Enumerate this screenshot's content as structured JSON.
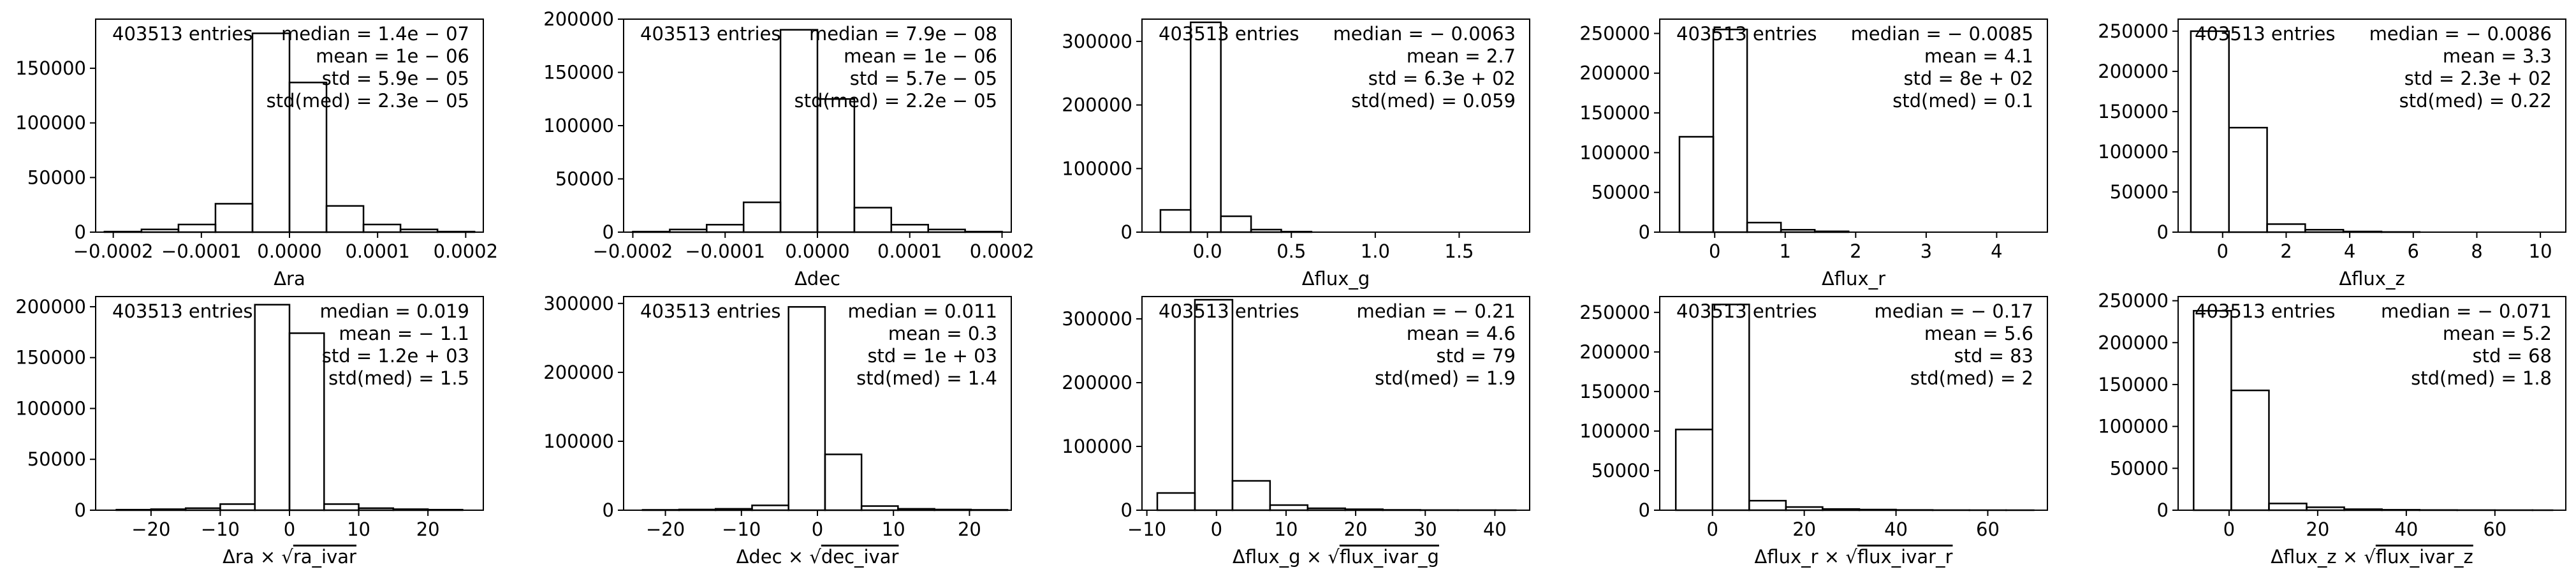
{
  "chart_data": [
    {
      "type": "bar",
      "entries_label": "403513 entries",
      "xlabel": "Δra",
      "stats": [
        "median = 1.4e − 07",
        "mean = 1e − 06",
        "std = 5.9e − 05",
        "std(med) = 2.3e − 05"
      ],
      "xlim": [
        -0.00022,
        0.00022
      ],
      "ylim": [
        0,
        195000
      ],
      "xticks": [
        -0.0002,
        -0.0001,
        0.0,
        0.0001,
        0.0002
      ],
      "xtick_labels": [
        "−0.0002",
        "−0.0001",
        "0.0000",
        "0.0001",
        "0.0002"
      ],
      "yticks": [
        0,
        50000,
        100000,
        150000
      ],
      "ytick_labels": [
        "0",
        "50000",
        "100000",
        "150000"
      ],
      "bins": [
        -0.00021,
        -0.000168,
        -0.000126,
        -8.4e-05,
        -4.2e-05,
        0.0,
        4.2e-05,
        8.4e-05,
        0.000126,
        0.000168,
        0.00021
      ],
      "counts": [
        500,
        2500,
        7000,
        26000,
        182000,
        137000,
        24000,
        7000,
        2500,
        500
      ]
    },
    {
      "type": "bar",
      "entries_label": "403513 entries",
      "xlabel": "Δdec",
      "stats": [
        "median = 7.9e − 08",
        "mean = 1e − 06",
        "std = 5.7e − 05",
        "std(med) = 2.2e − 05"
      ],
      "xlim": [
        -0.00021,
        0.00021
      ],
      "ylim": [
        0,
        200000
      ],
      "xticks": [
        -0.0002,
        -0.0001,
        0.0,
        0.0001,
        0.0002
      ],
      "xtick_labels": [
        "−0.0002",
        "−0.0001",
        "0.0000",
        "0.0001",
        "0.0002"
      ],
      "yticks": [
        0,
        50000,
        100000,
        150000,
        200000
      ],
      "ytick_labels": [
        "0",
        "50000",
        "100000",
        "150000",
        "200000"
      ],
      "bins": [
        -0.0002,
        -0.00016,
        -0.00012,
        -8e-05,
        -4e-05,
        0.0,
        4e-05,
        8e-05,
        0.00012,
        0.00016,
        0.0002
      ],
      "counts": [
        500,
        2500,
        7000,
        28000,
        190000,
        125000,
        23000,
        7000,
        2500,
        500
      ]
    },
    {
      "type": "bar",
      "entries_label": "403513 entries",
      "xlabel": "Δflux_g",
      "stats": [
        "median = − 0.0063",
        "mean = 2.7",
        "std = 6.3e + 02",
        "std(med) = 0.059"
      ],
      "xlim": [
        -0.39,
        1.92
      ],
      "ylim": [
        0,
        335000
      ],
      "xticks": [
        0.0,
        0.5,
        1.0,
        1.5
      ],
      "xtick_labels": [
        "0.0",
        "0.5",
        "1.0",
        "1.5"
      ],
      "yticks": [
        0,
        100000,
        200000,
        300000
      ],
      "ytick_labels": [
        "0",
        "100000",
        "200000",
        "300000"
      ],
      "bins": [
        -0.28,
        -0.1,
        0.08,
        0.26,
        0.44,
        0.62,
        0.8,
        0.98,
        1.16,
        1.34,
        1.52,
        1.7
      ],
      "counts": [
        35000,
        330000,
        25000,
        4000,
        800,
        0,
        0,
        0,
        0,
        0,
        0
      ]
    },
    {
      "type": "bar",
      "entries_label": "403513 entries",
      "xlabel": "Δflux_r",
      "stats": [
        "median = − 0.0085",
        "mean = 4.1",
        "std = 8e + 02",
        "std(med) = 0.1"
      ],
      "xlim": [
        -0.78,
        4.72
      ],
      "ylim": [
        0,
        268000
      ],
      "xticks": [
        0,
        1,
        2,
        3,
        4
      ],
      "xtick_labels": [
        "0",
        "1",
        "2",
        "3",
        "4"
      ],
      "yticks": [
        0,
        50000,
        100000,
        150000,
        200000,
        250000
      ],
      "ytick_labels": [
        "0",
        "50000",
        "100000",
        "150000",
        "200000",
        "250000"
      ],
      "bins": [
        -0.5,
        -0.02,
        0.46,
        0.94,
        1.42,
        1.9,
        2.38,
        2.86,
        3.34,
        3.82,
        4.3,
        4.78
      ],
      "counts": [
        120000,
        255000,
        12000,
        3000,
        1000,
        0,
        0,
        0,
        0,
        0,
        0
      ]
    },
    {
      "type": "bar",
      "entries_label": "403513 entries",
      "xlabel": "Δflux_z",
      "stats": [
        "median = − 0.0086",
        "mean = 3.3",
        "std = 2.3e + 02",
        "std(med) = 0.22"
      ],
      "xlim": [
        -1.4,
        10.8
      ],
      "ylim": [
        0,
        265000
      ],
      "xticks": [
        0,
        2,
        4,
        6,
        8,
        10
      ],
      "xtick_labels": [
        "0",
        "2",
        "4",
        "6",
        "8",
        "10"
      ],
      "yticks": [
        0,
        50000,
        100000,
        150000,
        200000,
        250000
      ],
      "ytick_labels": [
        "0",
        "50000",
        "100000",
        "150000",
        "200000",
        "250000"
      ],
      "bins": [
        -1.0,
        0.2,
        1.4,
        2.6,
        3.8,
        5.0,
        6.2,
        7.4,
        8.6,
        9.8
      ],
      "counts": [
        250000,
        130000,
        10000,
        3000,
        800,
        200,
        0,
        0,
        0
      ]
    },
    {
      "type": "bar",
      "entries_label": "403513 entries",
      "xlabel": "Δra × √ra_ivar",
      "xlabel_prefix": "Δra × ",
      "xlabel_sqrt": "ra_ivar",
      "stats": [
        "median = 0.019",
        "mean = − 1.1",
        "std = 1.2e + 03",
        "std(med) = 1.5"
      ],
      "xlim": [
        -28,
        28
      ],
      "ylim": [
        0,
        210000
      ],
      "xticks": [
        -20,
        -10,
        0,
        10,
        20
      ],
      "xtick_labels": [
        "−20",
        "−10",
        "0",
        "10",
        "20"
      ],
      "yticks": [
        0,
        50000,
        100000,
        150000,
        200000
      ],
      "ytick_labels": [
        "0",
        "50000",
        "100000",
        "150000",
        "200000"
      ],
      "bins": [
        -25,
        -20,
        -15,
        -10,
        -5,
        0,
        5,
        10,
        15,
        20,
        25
      ],
      "counts": [
        500,
        1000,
        2000,
        6000,
        202000,
        174000,
        6000,
        2000,
        1000,
        500
      ]
    },
    {
      "type": "bar",
      "entries_label": "403513 entries",
      "xlabel": "Δdec × √dec_ivar",
      "xlabel_prefix": "Δdec × ",
      "xlabel_sqrt": "dec_ivar",
      "stats": [
        "median = 0.011",
        "mean = 0.3",
        "std = 1e + 03",
        "std(med) = 1.4"
      ],
      "xlim": [
        -25.5,
        25.5
      ],
      "ylim": [
        0,
        310000
      ],
      "xticks": [
        -20,
        -10,
        0,
        10,
        20
      ],
      "xtick_labels": [
        "−20",
        "−10",
        "0",
        "10",
        "20"
      ],
      "yticks": [
        0,
        100000,
        200000,
        300000
      ],
      "ytick_labels": [
        "0",
        "100000",
        "200000",
        "300000"
      ],
      "bins": [
        -23,
        -18.2,
        -13.4,
        -8.6,
        -3.8,
        1.0,
        5.8,
        10.6,
        15.4,
        20.2,
        25
      ],
      "counts": [
        500,
        1000,
        2000,
        7000,
        295000,
        81000,
        6000,
        2000,
        1000,
        500
      ]
    },
    {
      "type": "bar",
      "entries_label": "403513 entries",
      "xlabel": "Δflux_g × √flux_ivar_g",
      "xlabel_prefix": "Δflux_g × ",
      "xlabel_sqrt": "flux_ivar_g",
      "stats": [
        "median = − 0.21",
        "mean = 4.6",
        "std = 79",
        "std(med) = 1.9"
      ],
      "xlim": [
        -10.7,
        45
      ],
      "ylim": [
        0,
        335000
      ],
      "xticks": [
        -10,
        0,
        10,
        20,
        30,
        40
      ],
      "xtick_labels": [
        "−10",
        "0",
        "10",
        "20",
        "30",
        "40"
      ],
      "yticks": [
        0,
        100000,
        200000,
        300000
      ],
      "ytick_labels": [
        "0",
        "100000",
        "200000",
        "300000"
      ],
      "bins": [
        -8.5,
        -3.1,
        2.3,
        7.7,
        13.1,
        18.5,
        23.9,
        29.3,
        34.7,
        40.1,
        43.0
      ],
      "counts": [
        27000,
        330000,
        46000,
        8000,
        3000,
        1500,
        500,
        200,
        100,
        50
      ]
    },
    {
      "type": "bar",
      "entries_label": "403513 entries",
      "xlabel": "Δflux_r × √flux_ivar_r",
      "xlabel_prefix": "Δflux_r × ",
      "xlabel_sqrt": "flux_ivar_r",
      "stats": [
        "median = − 0.17",
        "mean = 5.6",
        "std = 83",
        "std(med) = 2"
      ],
      "xlim": [
        -11.5,
        73
      ],
      "ylim": [
        0,
        270000
      ],
      "xticks": [
        0,
        20,
        40,
        60
      ],
      "xtick_labels": [
        "0",
        "20",
        "40",
        "60"
      ],
      "yticks": [
        0,
        50000,
        100000,
        150000,
        200000,
        250000
      ],
      "ytick_labels": [
        "0",
        "50000",
        "100000",
        "150000",
        "200000",
        "250000"
      ],
      "bins": [
        -8,
        0,
        8,
        16,
        24,
        32,
        40,
        48,
        56,
        64,
        70
      ],
      "counts": [
        102000,
        260000,
        12000,
        4000,
        1500,
        800,
        300,
        100,
        50,
        20
      ]
    },
    {
      "type": "bar",
      "entries_label": "403513 entries",
      "xlabel": "Δflux_z × √flux_ivar_z",
      "xlabel_prefix": "Δflux_z × ",
      "xlabel_sqrt": "flux_ivar_z",
      "stats": [
        "median = − 0.071",
        "mean = 5.2",
        "std = 68",
        "std(med) = 1.8"
      ],
      "xlim": [
        -11.5,
        76
      ],
      "ylim": [
        0,
        255000
      ],
      "xticks": [
        0,
        20,
        40,
        60
      ],
      "xtick_labels": [
        "0",
        "20",
        "40",
        "60"
      ],
      "yticks": [
        0,
        50000,
        100000,
        150000,
        200000,
        250000
      ],
      "ytick_labels": [
        "0",
        "50000",
        "100000",
        "150000",
        "200000",
        "250000"
      ],
      "bins": [
        -8,
        0.5,
        9,
        17.5,
        26,
        34.5,
        43,
        51.5,
        60,
        68.5,
        73
      ],
      "counts": [
        238000,
        143000,
        8000,
        3500,
        1200,
        500,
        200,
        100,
        50,
        20
      ]
    }
  ]
}
